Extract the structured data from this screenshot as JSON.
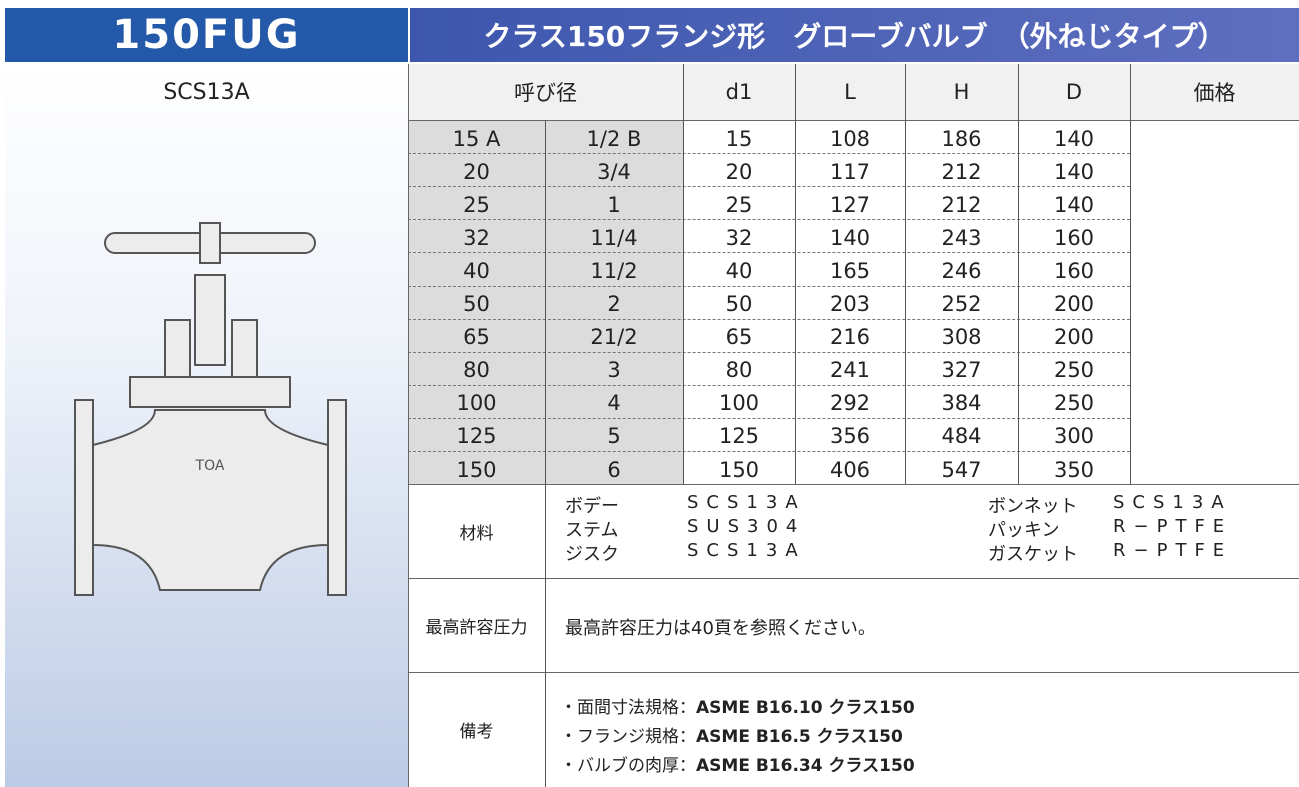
{
  "header": {
    "code": "150FUG",
    "title": "クラス150フランジ形　グローブバルブ　（外ねじタイプ）"
  },
  "material_label": "SCS13A",
  "table": {
    "columns": [
      "呼び径",
      "d1",
      "L",
      "H",
      "D",
      "価格"
    ],
    "rows": [
      [
        "15 A",
        "1/2 B",
        15,
        108,
        186,
        140
      ],
      [
        "20",
        "3/4",
        20,
        117,
        212,
        140
      ],
      [
        "25",
        "1",
        25,
        127,
        212,
        140
      ],
      [
        "32",
        "11/4",
        32,
        140,
        243,
        160
      ],
      [
        "40",
        "11/2",
        40,
        165,
        246,
        160
      ],
      [
        "50",
        "2",
        50,
        203,
        252,
        200
      ],
      [
        "65",
        "21/2",
        65,
        216,
        308,
        200
      ],
      [
        "80",
        "3",
        80,
        241,
        327,
        250
      ],
      [
        "100",
        "4",
        100,
        292,
        384,
        250
      ],
      [
        "125",
        "5",
        125,
        356,
        484,
        300
      ],
      [
        "150",
        "6",
        150,
        406,
        547,
        350
      ]
    ]
  },
  "specs": {
    "material": {
      "label": "材料",
      "items": [
        {
          "name": "ボデー",
          "value": "SCS13A"
        },
        {
          "name": "ステム",
          "value": "SUS304"
        },
        {
          "name": "ジスク",
          "value": "SCS13A"
        },
        {
          "name": "ボンネット",
          "value": "SCS13A"
        },
        {
          "name": "パッキン",
          "value": "R−PTFE"
        },
        {
          "name": "ガスケット",
          "value": "R−PTFE"
        }
      ]
    },
    "pressure": {
      "label": "最高許容圧力",
      "text": "最高許容圧力は40頁を参照ください。"
    },
    "notes": {
      "label": "備考",
      "items": [
        {
          "prefix": "・面間寸法規格：",
          "bold": "ASME B16.10 クラス150"
        },
        {
          "prefix": "・フランジ規格：",
          "bold": "ASME B16.5 クラス150"
        },
        {
          "prefix": "・バルブの肉厚：",
          "bold": "ASME B16.34 クラス150"
        }
      ]
    }
  }
}
